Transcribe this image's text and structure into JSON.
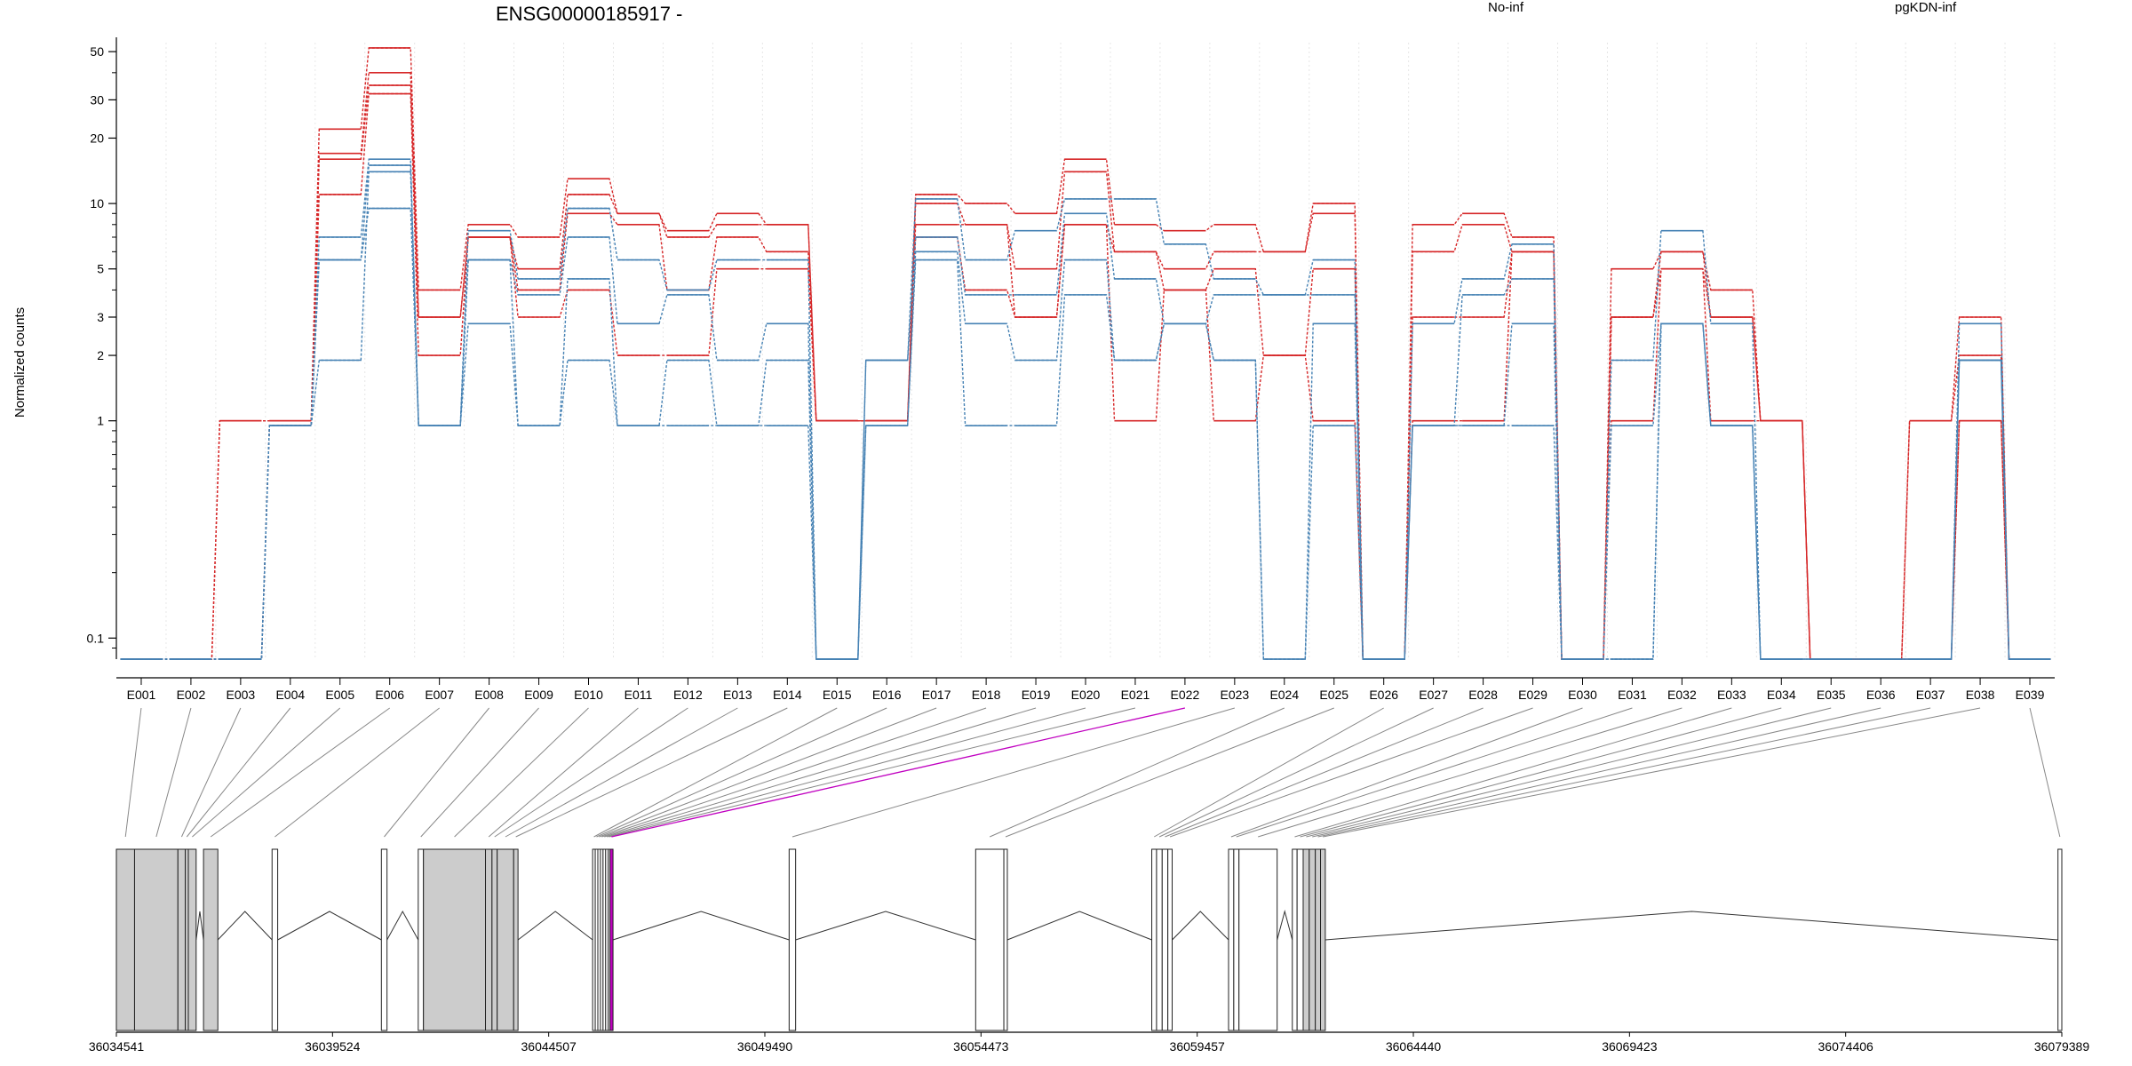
{
  "chart_data": {
    "type": "line",
    "title": "ENSG00000185917 -",
    "ylabel": "Normalized counts",
    "xlabel": "",
    "y_scale": "log",
    "ylim": [
      0.08,
      55
    ],
    "y_ticks": [
      {
        "value": 0.1,
        "label": "0.1"
      },
      {
        "value": 1,
        "label": "1"
      },
      {
        "value": 2,
        "label": "2"
      },
      {
        "value": 3,
        "label": "3"
      },
      {
        "value": 5,
        "label": "5"
      },
      {
        "value": 10,
        "label": "10"
      },
      {
        "value": 20,
        "label": "20"
      },
      {
        "value": 30,
        "label": "30"
      },
      {
        "value": 50,
        "label": "50"
      }
    ],
    "grid": "vertical dotted",
    "legend": [
      {
        "name": "No-inf",
        "color": "#d62728",
        "placement": "top-right"
      },
      {
        "name": "pgKDN-inf",
        "color": "#4682b4",
        "placement": "top-right"
      }
    ],
    "categories": [
      "E001",
      "E002",
      "E003",
      "E004",
      "E005",
      "E006",
      "E007",
      "E008",
      "E009",
      "E010",
      "E011",
      "E012",
      "E013",
      "E014",
      "E015",
      "E016",
      "E017",
      "E018",
      "E019",
      "E020",
      "E021",
      "E022",
      "E023",
      "E024",
      "E025",
      "E026",
      "E027",
      "E028",
      "E029",
      "E030",
      "E031",
      "E032",
      "E033",
      "E034",
      "E035",
      "E036",
      "E037",
      "E038",
      "E039"
    ],
    "series": [
      {
        "group": "No-inf",
        "color": "#d62728",
        "values": [
          0.08,
          0.08,
          1,
          1,
          22,
          52,
          4,
          8,
          7,
          13,
          9,
          7.5,
          9,
          8,
          1,
          1,
          11,
          10,
          9,
          16,
          8,
          7.5,
          8,
          6,
          10,
          0.08,
          8,
          9,
          7,
          0.08,
          5,
          6,
          4,
          1,
          0.08,
          0.08,
          1,
          3,
          0.08
        ]
      },
      {
        "group": "No-inf",
        "color": "#d62728",
        "values": [
          0.08,
          0.08,
          1,
          1,
          17,
          40,
          3,
          7,
          5,
          11,
          9,
          7,
          8,
          8,
          1,
          1,
          10,
          8,
          5,
          14,
          6,
          5,
          6,
          6,
          9,
          0.08,
          6,
          8,
          6,
          0.08,
          3,
          6,
          3,
          1,
          0.08,
          0.08,
          1,
          2,
          0.08
        ]
      },
      {
        "group": "No-inf",
        "color": "#d62728",
        "values": [
          0.08,
          0.08,
          0.08,
          0.95,
          16,
          35,
          3,
          7,
          4,
          9,
          8,
          4,
          7,
          6,
          1,
          1,
          8,
          8,
          3,
          8,
          6,
          4,
          5,
          2,
          5,
          0.08,
          3,
          3,
          6,
          0.08,
          3,
          5,
          3,
          1,
          0.08,
          0.08,
          0.08,
          1,
          0.08
        ]
      },
      {
        "group": "No-inf",
        "color": "#d62728",
        "values": [
          0.08,
          0.08,
          0.08,
          0.95,
          11,
          32,
          2,
          7,
          3,
          4,
          2,
          2,
          5,
          5,
          1,
          1,
          7,
          4,
          3,
          8,
          1,
          4,
          1,
          2,
          1,
          0.08,
          1,
          1,
          6,
          0.08,
          1,
          5,
          1,
          1,
          0.08,
          0.08,
          0.08,
          1,
          0.08
        ]
      },
      {
        "group": "pgKDN-inf",
        "color": "#4682b4",
        "values": [
          0.08,
          0.08,
          0.08,
          0.95,
          7,
          16,
          0.95,
          7.5,
          4.5,
          9.5,
          5.5,
          4,
          5.5,
          5.5,
          0.08,
          1.9,
          10.5,
          5.5,
          7.5,
          10.5,
          10.5,
          6.5,
          4.5,
          3.8,
          5.5,
          0.08,
          2.8,
          4.5,
          6.5,
          0.08,
          1.9,
          7.5,
          2.8,
          0.08,
          0.08,
          0.08,
          0.08,
          2.8,
          0.08
        ]
      },
      {
        "group": "pgKDN-inf",
        "color": "#4682b4",
        "values": [
          0.08,
          0.08,
          0.08,
          0.95,
          5.5,
          15,
          0.95,
          5.5,
          3.8,
          7,
          2.8,
          3.8,
          1.9,
          2.8,
          0.08,
          1.9,
          7,
          3.8,
          3.8,
          9,
          4.5,
          2.8,
          3.8,
          3.8,
          3.8,
          0.08,
          0.95,
          3.8,
          4.5,
          0.08,
          0.95,
          2.8,
          0.95,
          0.08,
          0.08,
          0.08,
          0.08,
          1.9,
          0.08
        ]
      },
      {
        "group": "pgKDN-inf",
        "color": "#4682b4",
        "values": [
          0.08,
          0.08,
          0.08,
          0.95,
          1.9,
          14,
          0.95,
          5.5,
          0.95,
          4.5,
          0.95,
          1.9,
          0.95,
          1.9,
          0.08,
          0.95,
          6,
          2.8,
          1.9,
          5.5,
          1.9,
          2.8,
          1.9,
          0.08,
          2.8,
          0.08,
          0.95,
          0.95,
          2.8,
          0.08,
          0.08,
          2.8,
          0.95,
          0.08,
          0.08,
          0.08,
          0.08,
          1.9,
          0.08
        ]
      },
      {
        "group": "pgKDN-inf",
        "color": "#4682b4",
        "values": [
          0.08,
          0.08,
          0.08,
          0.95,
          5.5,
          9.5,
          0.95,
          2.8,
          0.95,
          1.9,
          0.95,
          0.95,
          0.95,
          0.95,
          0.08,
          0.95,
          5.5,
          0.95,
          0.95,
          3.8,
          1.9,
          2.8,
          1.9,
          0.08,
          0.95,
          0.08,
          0.95,
          0.95,
          0.95,
          0.08,
          0.08,
          2.8,
          0.95,
          0.08,
          0.08,
          0.08,
          0.08,
          1.9,
          0.08
        ]
      }
    ],
    "gene_model": {
      "coordinate_labels": [
        "36034541",
        "36039524",
        "36044507",
        "36049490",
        "36054473",
        "36059457",
        "36064440",
        "36069423",
        "36074406",
        "36079389"
      ],
      "coordinate_values": [
        36034541,
        36039524,
        36044507,
        36049490,
        36054473,
        36059457,
        36064440,
        36069423,
        36074406,
        36079389
      ],
      "genomic_range": [
        36034541,
        36079389
      ],
      "highlighted_exon": "E022",
      "highlight_color": "#c000c0",
      "exons": [
        {
          "id": "E001",
          "start": 36034541,
          "end": 36034960,
          "coding": true
        },
        {
          "id": "E002",
          "start": 36034960,
          "end": 36035960,
          "coding": true
        },
        {
          "id": "E003",
          "start": 36035960,
          "end": 36036130,
          "coding": true
        },
        {
          "id": "E004",
          "start": 36036130,
          "end": 36036200,
          "coding": true
        },
        {
          "id": "E005",
          "start": 36036200,
          "end": 36036380,
          "coding": true
        },
        {
          "id": "E006",
          "start": 36036550,
          "end": 36036880,
          "coding": true
        },
        {
          "id": "E007",
          "start": 36038130,
          "end": 36038260,
          "coding": false
        },
        {
          "id": "E008",
          "start": 36040650,
          "end": 36040780,
          "coding": false
        },
        {
          "id": "E009",
          "start": 36041500,
          "end": 36041620,
          "coding": false
        },
        {
          "id": "E010",
          "start": 36041620,
          "end": 36043050,
          "coding": true
        },
        {
          "id": "E011",
          "start": 36043050,
          "end": 36043200,
          "coding": true
        },
        {
          "id": "E012",
          "start": 36043200,
          "end": 36043320,
          "coding": true
        },
        {
          "id": "E013",
          "start": 36043320,
          "end": 36043700,
          "coding": true
        },
        {
          "id": "E014",
          "start": 36043700,
          "end": 36043800,
          "coding": true
        },
        {
          "id": "E015",
          "start": 36045520,
          "end": 36045580,
          "coding": false
        },
        {
          "id": "E016",
          "start": 36045580,
          "end": 36045640,
          "coding": false
        },
        {
          "id": "E017",
          "start": 36045640,
          "end": 36045700,
          "coding": false
        },
        {
          "id": "E018",
          "start": 36045700,
          "end": 36045760,
          "coding": false
        },
        {
          "id": "E019",
          "start": 36045760,
          "end": 36045820,
          "coding": false
        },
        {
          "id": "E020",
          "start": 36045820,
          "end": 36045880,
          "coding": false
        },
        {
          "id": "E021",
          "start": 36045880,
          "end": 36045920,
          "coding": false
        },
        {
          "id": "E022",
          "start": 36045920,
          "end": 36045990,
          "coding": false
        },
        {
          "id": "E023",
          "start": 36050050,
          "end": 36050200,
          "coding": false
        },
        {
          "id": "E024",
          "start": 36054350,
          "end": 36055000,
          "coding": false
        },
        {
          "id": "E025",
          "start": 36055000,
          "end": 36055080,
          "coding": false
        },
        {
          "id": "E026",
          "start": 36058410,
          "end": 36058520,
          "coding": false
        },
        {
          "id": "E027",
          "start": 36058520,
          "end": 36058650,
          "coding": false
        },
        {
          "id": "E028",
          "start": 36058650,
          "end": 36058780,
          "coding": false
        },
        {
          "id": "E029",
          "start": 36058780,
          "end": 36058880,
          "coding": false
        },
        {
          "id": "E030",
          "start": 36060180,
          "end": 36060300,
          "coding": false
        },
        {
          "id": "E031",
          "start": 36060300,
          "end": 36060420,
          "coding": false
        },
        {
          "id": "E032",
          "start": 36060420,
          "end": 36061300,
          "coding": false
        },
        {
          "id": "E033",
          "start": 36061650,
          "end": 36061760,
          "coding": false
        },
        {
          "id": "E034",
          "start": 36061760,
          "end": 36061900,
          "coding": false
        },
        {
          "id": "E035",
          "start": 36061900,
          "end": 36062040,
          "coding": true
        },
        {
          "id": "E036",
          "start": 36062040,
          "end": 36062180,
          "coding": true
        },
        {
          "id": "E037",
          "start": 36062180,
          "end": 36062300,
          "coding": true
        },
        {
          "id": "E038",
          "start": 36062300,
          "end": 36062410,
          "coding": true
        },
        {
          "id": "E039",
          "start": 36079300,
          "end": 36079389,
          "coding": false
        }
      ]
    }
  }
}
